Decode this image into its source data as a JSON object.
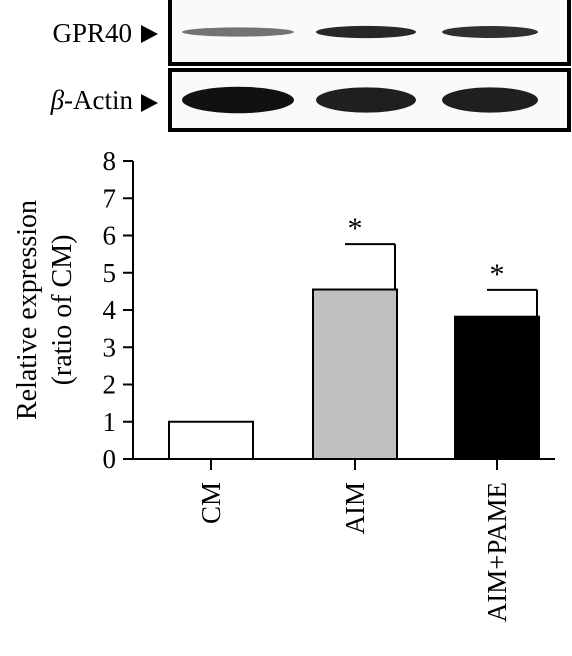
{
  "blot": {
    "lanes": [
      "CM",
      "AIM",
      "AIM+PAME"
    ],
    "rows": [
      {
        "label_prefix": "",
        "label": "GPR40",
        "band_intensity": [
          0.35,
          0.85,
          0.8
        ]
      },
      {
        "label_prefix": "β",
        "label": "-Actin",
        "band_intensity": [
          1.0,
          0.9,
          0.9
        ]
      }
    ],
    "band_color": "#111111",
    "frame_color": "#000000"
  },
  "chart_data": {
    "type": "bar",
    "categories": [
      "CM",
      "AIM",
      "AIM+PAME"
    ],
    "values": [
      1.0,
      4.55,
      3.82
    ],
    "error_up": [
      0,
      1.22,
      0.72
    ],
    "significance": [
      "",
      "*",
      "*"
    ],
    "bar_colors": [
      "#ffffff",
      "#c0c0c0",
      "#000000"
    ],
    "ylabel_line1": "Relative expression",
    "ylabel_line2": "(ratio of CM)",
    "ylim": [
      0,
      8
    ],
    "yticks": [
      "0",
      "1",
      "2",
      "3",
      "4",
      "5",
      "6",
      "7",
      "8"
    ],
    "xlabel": "",
    "grid": false
  }
}
